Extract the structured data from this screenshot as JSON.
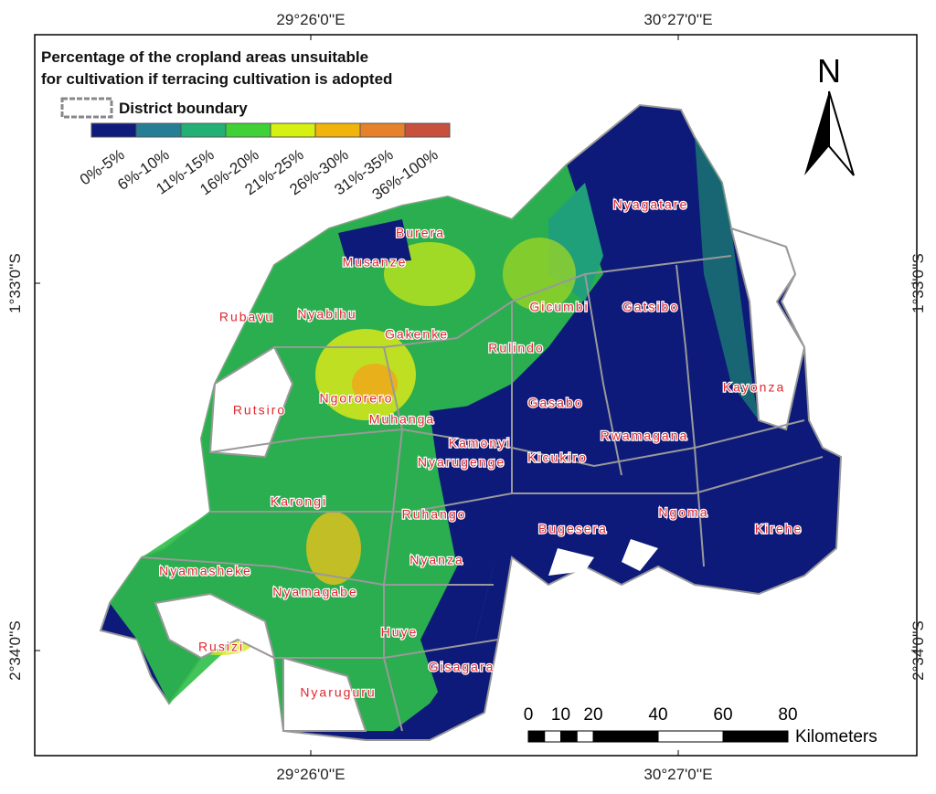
{
  "title": [
    "Percentage of the cropland areas unsuitable",
    "for cultivation if terracing cultivation is adopted"
  ],
  "legend": {
    "boundary_label": "District boundary",
    "classes": [
      {
        "label": "0%-5%",
        "color": "#101c7c"
      },
      {
        "label": "6%-10%",
        "color": "#247e96"
      },
      {
        "label": "11%-15%",
        "color": "#22b074"
      },
      {
        "label": "16%-20%",
        "color": "#3ed236"
      },
      {
        "label": "21%-25%",
        "color": "#d6f012"
      },
      {
        "label": "26%-30%",
        "color": "#f2b40c"
      },
      {
        "label": "31%-35%",
        "color": "#e8822a"
      },
      {
        "label": "36%-100%",
        "color": "#c8503c"
      }
    ]
  },
  "north_label": "N",
  "coordinates": {
    "longitudes": [
      "29°26'0''E",
      "30°27'0''E"
    ],
    "latitudes": [
      "1°33'0''S",
      "2°34'0''S"
    ]
  },
  "districts": [
    "Nyagatare",
    "Burera",
    "Musanze",
    "Rubavu",
    "Nyabihu",
    "Gakenke",
    "Rulindo",
    "Gicumbi",
    "Gatsibo",
    "Kayonza",
    "Rutsiro",
    "Ngororero",
    "Muhanga",
    "Gasabo",
    "Rwamagana",
    "Kamonyi",
    "Kicukiro",
    "Nyarugenge",
    "Karongi",
    "Ruhango",
    "Ngoma",
    "Kirehe",
    "Bugesera",
    "Nyamasheke",
    "Nyanza",
    "Nyamagabe",
    "Huye",
    "Rusizi",
    "Gisagara",
    "Nyaruguru"
  ],
  "scale_bar": {
    "ticks": [
      0,
      10,
      20,
      40,
      60,
      80
    ],
    "unit": "Kilometers"
  }
}
